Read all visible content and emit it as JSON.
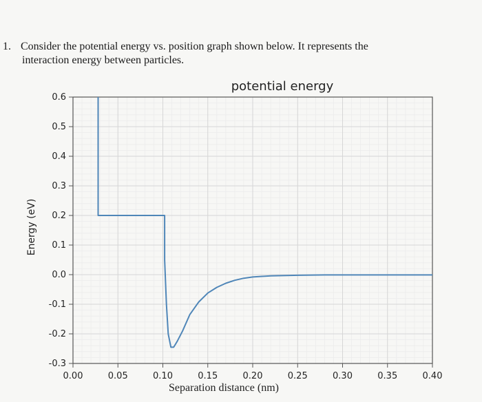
{
  "question": {
    "number": "1.",
    "line1": "Consider the potential energy vs. position graph shown below. It represents the",
    "line2": "interaction energy between particles."
  },
  "chart_data": {
    "type": "line",
    "title": "potential energy",
    "xlabel": "Separation distance (nm)",
    "ylabel": "Energy (eV)",
    "xlim": [
      0.0,
      0.4
    ],
    "ylim": [
      -0.3,
      0.6
    ],
    "x_ticks": [
      "0.00",
      "0.05",
      "0.10",
      "0.15",
      "0.20",
      "0.25",
      "0.30",
      "0.35",
      "0.40"
    ],
    "y_ticks": [
      "0.6",
      "0.5",
      "0.4",
      "0.3",
      "0.2",
      "0.1",
      "0.0",
      "-0.1",
      "-0.2",
      "-0.3"
    ],
    "grid": true,
    "series": [
      {
        "color": "#4f86b8",
        "points": [
          [
            0.028,
            0.6
          ],
          [
            0.028,
            0.2
          ],
          [
            0.102,
            0.2
          ],
          [
            0.102,
            0.05
          ],
          [
            0.104,
            -0.1
          ],
          [
            0.106,
            -0.2
          ],
          [
            0.109,
            -0.245
          ],
          [
            0.112,
            -0.245
          ],
          [
            0.116,
            -0.225
          ],
          [
            0.122,
            -0.19
          ],
          [
            0.13,
            -0.135
          ],
          [
            0.14,
            -0.092
          ],
          [
            0.15,
            -0.062
          ],
          [
            0.16,
            -0.043
          ],
          [
            0.17,
            -0.029
          ],
          [
            0.18,
            -0.019
          ],
          [
            0.19,
            -0.012
          ],
          [
            0.2,
            -0.008
          ],
          [
            0.22,
            -0.004
          ],
          [
            0.25,
            -0.002
          ],
          [
            0.28,
            -0.001
          ],
          [
            0.33,
            -0.001
          ],
          [
            0.4,
            -0.001
          ]
        ]
      }
    ]
  }
}
